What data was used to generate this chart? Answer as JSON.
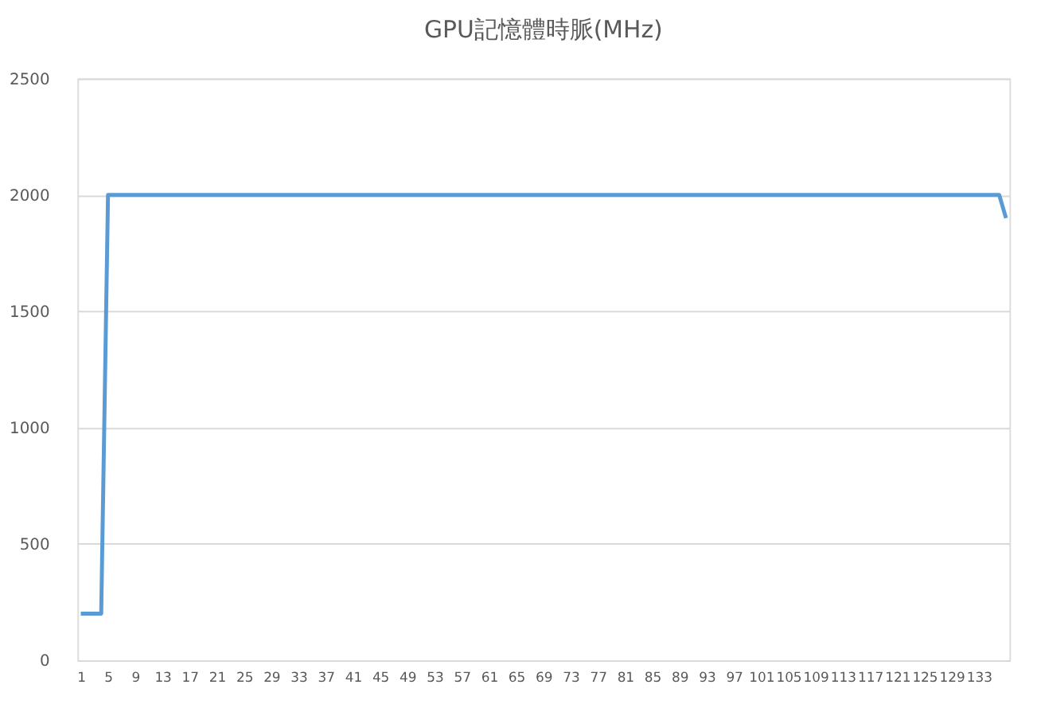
{
  "chart_data": {
    "type": "line",
    "title": "GPU記憶體時脈(MHz)",
    "categories": [
      "1",
      null,
      null,
      null,
      "5",
      null,
      null,
      null,
      "9",
      null,
      null,
      null,
      "13",
      null,
      null,
      null,
      "17",
      null,
      null,
      null,
      "21",
      null,
      null,
      null,
      "25",
      null,
      null,
      null,
      "29",
      null,
      null,
      null,
      "33",
      null,
      null,
      null,
      "37",
      null,
      null,
      null,
      "41",
      null,
      null,
      null,
      "45",
      null,
      null,
      null,
      "49",
      null,
      null,
      null,
      "53",
      null,
      null,
      null,
      "57",
      null,
      null,
      null,
      "61",
      null,
      null,
      null,
      "65",
      null,
      null,
      null,
      "69",
      null,
      null,
      null,
      "73",
      null,
      null,
      null,
      "77",
      null,
      null,
      null,
      "81",
      null,
      null,
      null,
      "85",
      null,
      null,
      null,
      "89",
      null,
      null,
      null,
      "93",
      null,
      null,
      null,
      "97",
      null,
      null,
      null,
      "101",
      null,
      null,
      null,
      "105",
      null,
      null,
      null,
      "109",
      null,
      null,
      null,
      "113",
      null,
      null,
      null,
      "117",
      null,
      null,
      null,
      "121",
      null,
      null,
      null,
      "125",
      null,
      null,
      null,
      "129",
      null,
      null,
      null,
      "133",
      null,
      null,
      null,
      null
    ],
    "series": [
      {
        "color": "#5b9bd5",
        "values": [
          200,
          200,
          200,
          200,
          2000,
          2000,
          2000,
          2000,
          2000,
          2000,
          2000,
          2000,
          2000,
          2000,
          2000,
          2000,
          2000,
          2000,
          2000,
          2000,
          2000,
          2000,
          2000,
          2000,
          2000,
          2000,
          2000,
          2000,
          2000,
          2000,
          2000,
          2000,
          2000,
          2000,
          2000,
          2000,
          2000,
          2000,
          2000,
          2000,
          2000,
          2000,
          2000,
          2000,
          2000,
          2000,
          2000,
          2000,
          2000,
          2000,
          2000,
          2000,
          2000,
          2000,
          2000,
          2000,
          2000,
          2000,
          2000,
          2000,
          2000,
          2000,
          2000,
          2000,
          2000,
          2000,
          2000,
          2000,
          2000,
          2000,
          2000,
          2000,
          2000,
          2000,
          2000,
          2000,
          2000,
          2000,
          2000,
          2000,
          2000,
          2000,
          2000,
          2000,
          2000,
          2000,
          2000,
          2000,
          2000,
          2000,
          2000,
          2000,
          2000,
          2000,
          2000,
          2000,
          2000,
          2000,
          2000,
          2000,
          2000,
          2000,
          2000,
          2000,
          2000,
          2000,
          2000,
          2000,
          2000,
          2000,
          2000,
          2000,
          2000,
          2000,
          2000,
          2000,
          2000,
          2000,
          2000,
          2000,
          2000,
          2000,
          2000,
          2000,
          2000,
          2000,
          2000,
          2000,
          2000,
          2000,
          2000,
          2000,
          2000,
          2000,
          2000,
          2000,
          1900
        ]
      }
    ],
    "ylim": [
      0,
      2500
    ],
    "yticks": [
      0,
      500,
      1000,
      1500,
      2000,
      2500
    ],
    "grid": "y",
    "legend": false,
    "marker": "none",
    "line_style": "solid"
  }
}
